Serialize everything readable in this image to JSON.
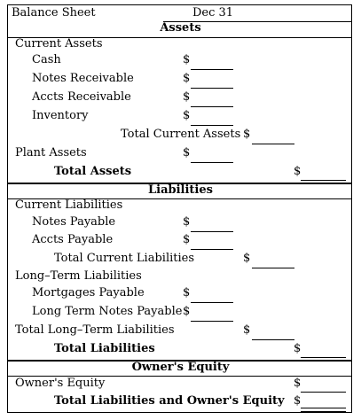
{
  "header": {
    "title": "Balance Sheet",
    "date": "Dec 31"
  },
  "sections": {
    "assets": "Assets",
    "liabilities": "Liabilities",
    "equity": "Owner's Equity"
  },
  "assets": {
    "current_label": "Current Assets",
    "items": [
      "Cash",
      "Notes Receivable",
      "Accts Receivable",
      "Inventory"
    ],
    "total_current": "Total Current Assets",
    "plant": "Plant Assets",
    "total": "Total Assets"
  },
  "liabilities": {
    "current_label": "Current Liabilities",
    "current_items": [
      "Notes Payable",
      "Accts Payable"
    ],
    "total_current": "Total Current Liabilities",
    "long_term_label": "Long–Term Liabilities",
    "long_term_items": [
      "Mortgages Payable",
      "Long Term Notes Payable"
    ],
    "total_long_term": "Total Long–Term Liabilities",
    "total": "Total Liabilities"
  },
  "equity": {
    "owners_equity": "Owner's Equity",
    "total": "Total Liabilities and Owner's Equity"
  },
  "currency_symbol": "$"
}
